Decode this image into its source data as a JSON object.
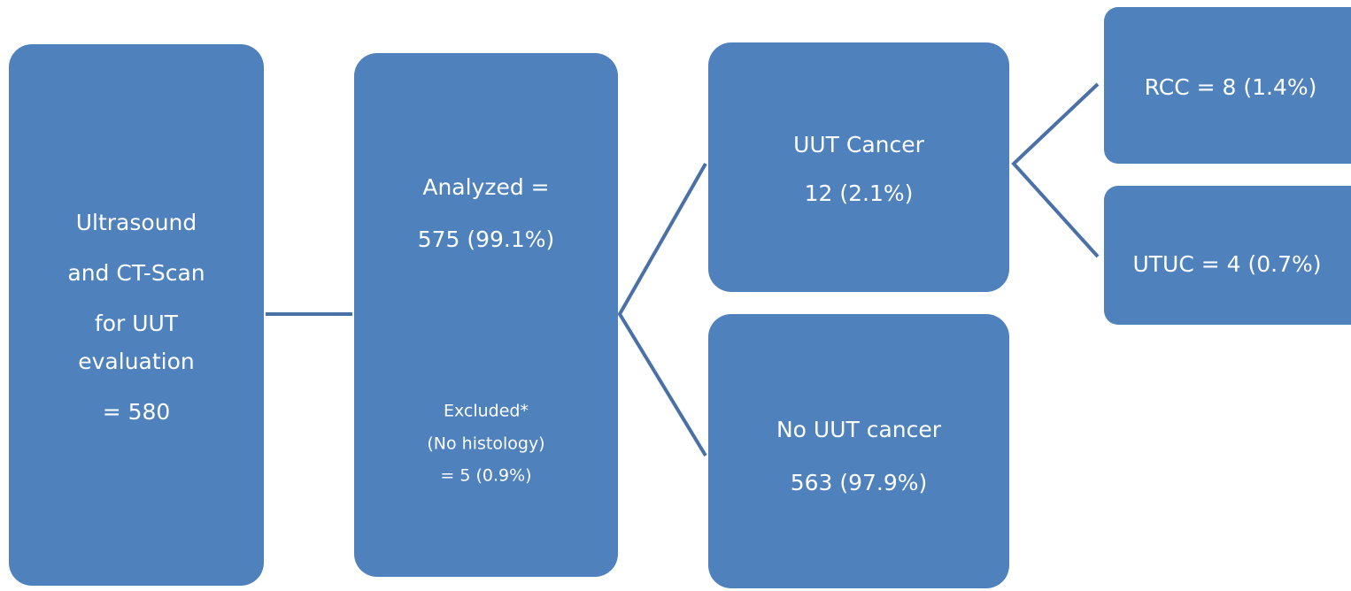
{
  "nodes": [
    {
      "lines": [
        "Ultrasound",
        "and CT-Scan",
        "for UUT",
        "evaluation",
        "= 580"
      ]
    },
    {
      "lines": [
        "Analyzed =",
        "575 (99.1%)"
      ],
      "note": [
        "Excluded*",
        "(No histology)",
        "= 5 (0.9%)"
      ]
    },
    {
      "lines": [
        "UUT Cancer",
        "12 (2.1%)"
      ]
    },
    {
      "lines": [
        "No UUT cancer",
        "563 (97.9%)"
      ]
    },
    {
      "lines": [
        "RCC = 8 (1.4%)"
      ]
    },
    {
      "lines": [
        "UTUC = 4 (0.7%)"
      ]
    }
  ]
}
